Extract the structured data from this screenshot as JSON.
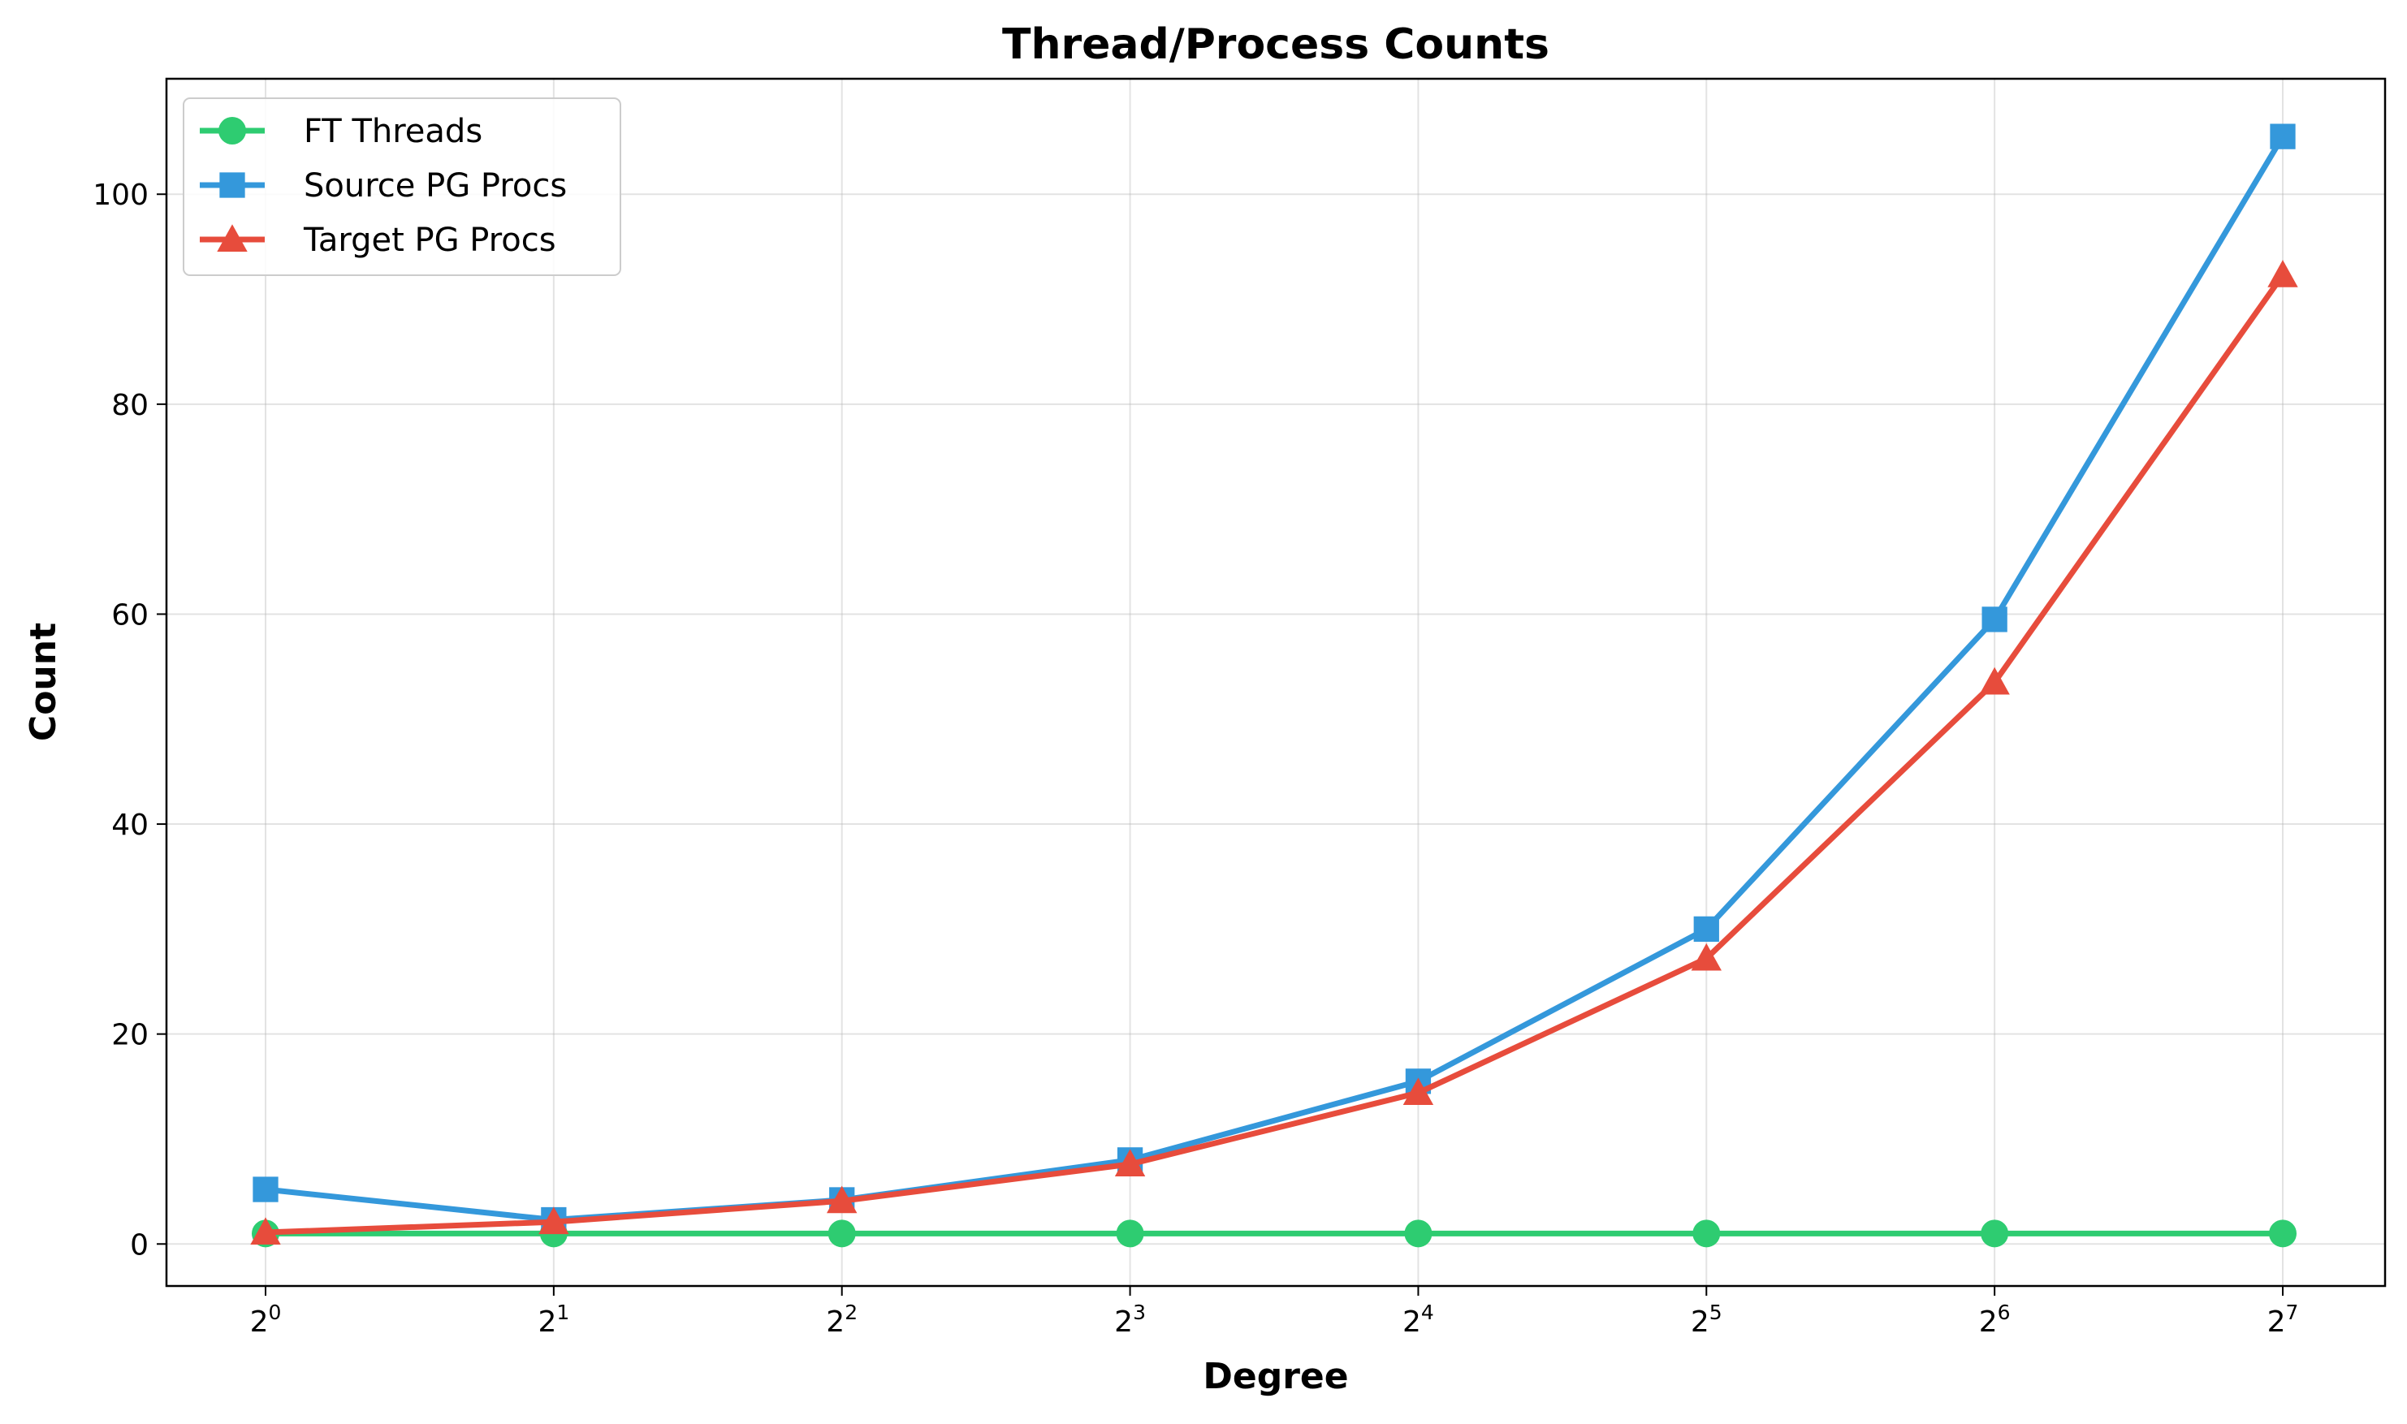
{
  "chart_data": {
    "type": "line",
    "title": "Thread/Process Counts",
    "xlabel": "Degree",
    "ylabel": "Count",
    "x_scale": "log2",
    "x": [
      1,
      2,
      4,
      8,
      16,
      32,
      64,
      128
    ],
    "x_tick_labels": [
      {
        "base": "2",
        "exp": "0"
      },
      {
        "base": "2",
        "exp": "1"
      },
      {
        "base": "2",
        "exp": "2"
      },
      {
        "base": "2",
        "exp": "3"
      },
      {
        "base": "2",
        "exp": "4"
      },
      {
        "base": "2",
        "exp": "5"
      },
      {
        "base": "2",
        "exp": "6"
      },
      {
        "base": "2",
        "exp": "7"
      }
    ],
    "ylim": [
      -4,
      111
    ],
    "y_ticks": [
      0,
      20,
      40,
      60,
      80,
      100
    ],
    "grid": true,
    "legend_position": "top-left",
    "series": [
      {
        "name": "FT Threads",
        "color": "#2ecc71",
        "marker": "circle",
        "values": [
          1,
          1,
          1,
          1,
          1,
          1,
          1,
          1
        ]
      },
      {
        "name": "Source PG Procs",
        "color": "#3498db",
        "marker": "square",
        "values": [
          5.2,
          2.3,
          4.2,
          8,
          15.5,
          30,
          59.5,
          105.5
        ]
      },
      {
        "name": "Target PG Procs",
        "color": "#e74c3c",
        "marker": "triangle",
        "values": [
          1.1,
          2.1,
          4.1,
          7.6,
          14.4,
          27.2,
          53.5,
          92.3
        ]
      }
    ]
  }
}
